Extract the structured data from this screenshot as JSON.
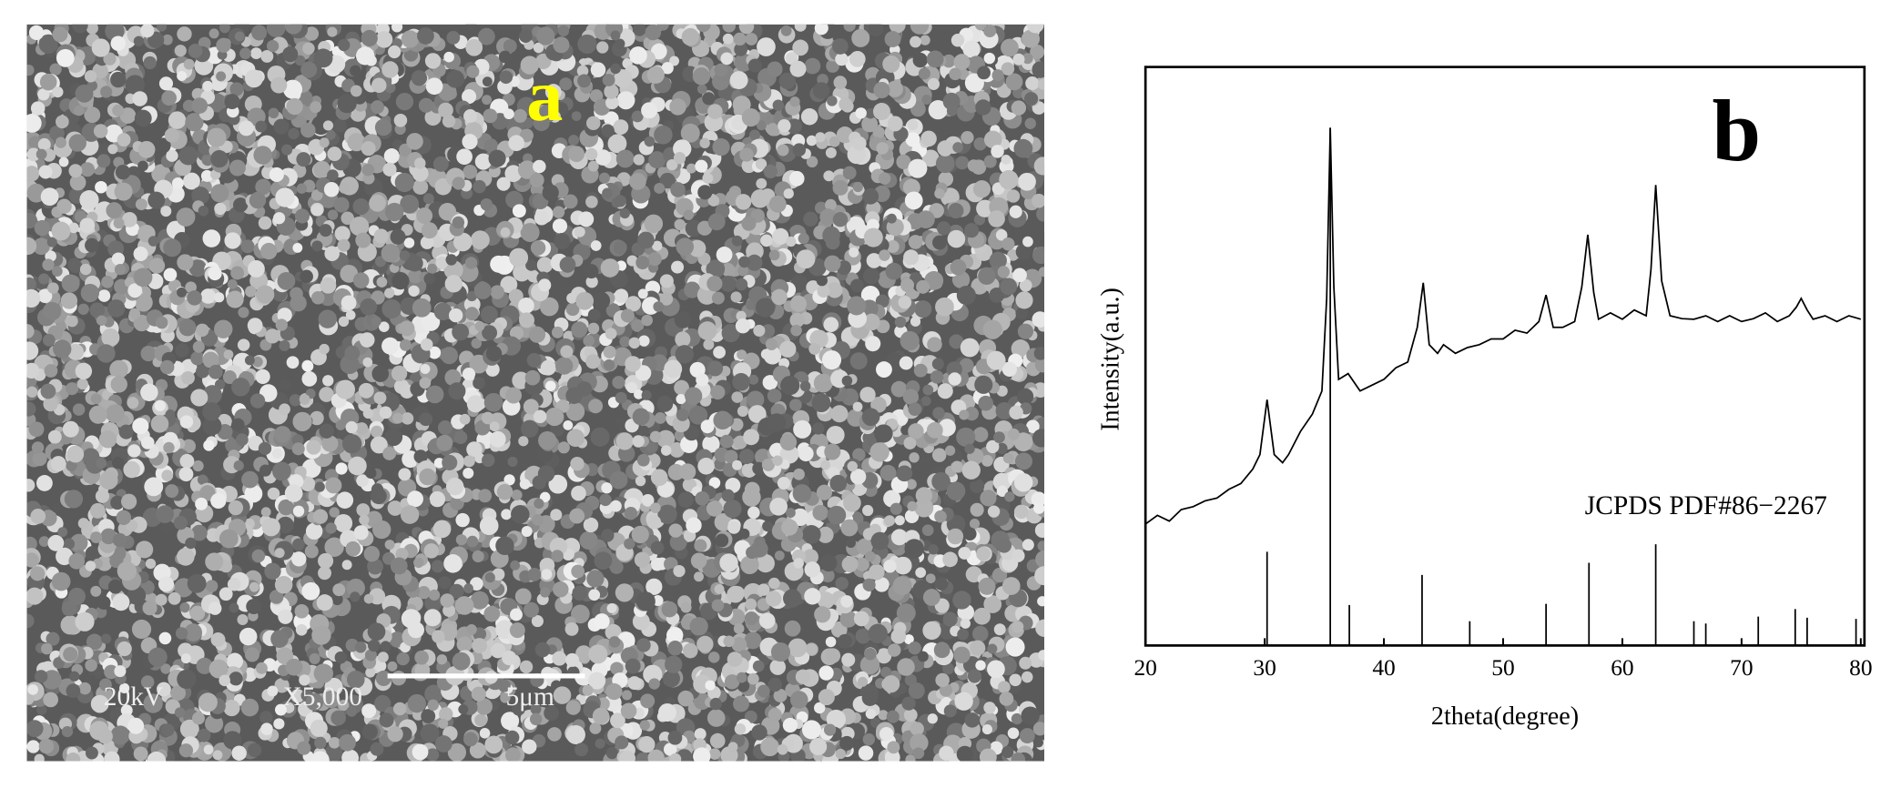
{
  "panel_a": {
    "label": "a",
    "scale_texts": [
      "20kV",
      "X5,000",
      "5μm"
    ]
  },
  "chart_data": {
    "type": "line",
    "panel_label": "b",
    "ylabel": "Intensity(a.u.)",
    "xlabel": "2theta(degree)",
    "annotation": "JCPDS PDF#86−2267",
    "xlim": [
      20,
      80
    ],
    "ylim": [
      0,
      100
    ],
    "xticks": [
      20,
      30,
      40,
      50,
      60,
      70,
      80
    ],
    "color": "#000000",
    "x": [
      20,
      21,
      22,
      23,
      24,
      25,
      26,
      27,
      28,
      29,
      29.6,
      30.2,
      30.8,
      31.5,
      32,
      33,
      34,
      34.8,
      35.2,
      35.5,
      35.8,
      36.2,
      37,
      38,
      39,
      40,
      41,
      42,
      42.8,
      43.3,
      43.8,
      44.5,
      45,
      46,
      47,
      48,
      49,
      50,
      51,
      52,
      53,
      53.6,
      54.2,
      55,
      56,
      56.6,
      57.1,
      57.6,
      58,
      59,
      60,
      61,
      62,
      62.4,
      62.8,
      63.3,
      64,
      65,
      66,
      67,
      68,
      69,
      70,
      71,
      72,
      73,
      74,
      74.6,
      75,
      75.5,
      76,
      77,
      78,
      79,
      80
    ],
    "values": [
      21,
      22.5,
      21.5,
      23.5,
      24,
      25,
      25.5,
      27,
      28,
      30.5,
      33,
      42.5,
      33,
      31.6,
      33,
      37,
      40,
      44,
      60,
      89.5,
      62,
      46,
      47,
      44,
      45,
      46,
      48,
      49,
      55,
      62.7,
      52,
      50.5,
      52,
      50.5,
      51.5,
      52,
      53,
      53,
      54.5,
      54,
      56,
      60.6,
      55,
      55,
      56,
      62,
      71,
      61,
      56.4,
      57.5,
      56.4,
      58,
      57,
      65,
      79.6,
      63,
      57,
      56.5,
      56.4,
      57,
      56,
      57,
      56,
      56.5,
      57.5,
      56,
      57,
      58.5,
      60,
      58,
      56.4,
      57,
      56,
      57,
      56.4
    ],
    "reference": {
      "x": [
        30.2,
        35.5,
        37.1,
        43.2,
        47.2,
        53.6,
        57.2,
        62.8,
        66,
        67,
        71.4,
        74.5,
        75.5,
        79.6
      ],
      "values": [
        16.2,
        89.5,
        7,
        12.2,
        4.2,
        7.2,
        14.3,
        17.5,
        4.2,
        3.8,
        5,
        6.3,
        4.8,
        4.6
      ]
    }
  }
}
